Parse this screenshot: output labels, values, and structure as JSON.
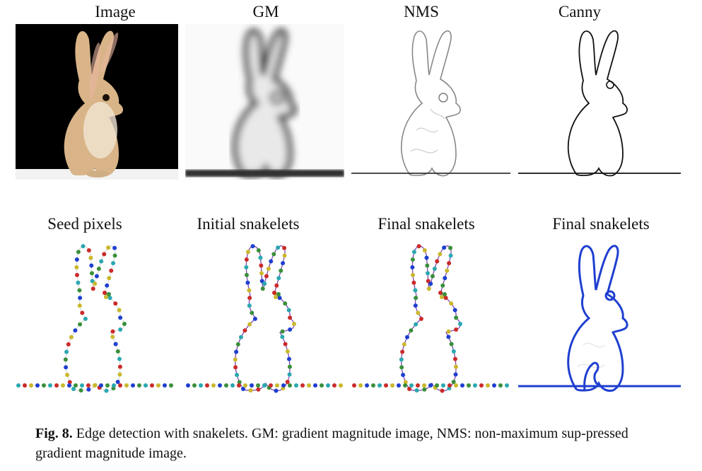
{
  "row1_titles": [
    "Image",
    "GM",
    "NMS",
    "Canny"
  ],
  "row2_titles": [
    "Seed pixels",
    "Initial snakelets",
    "Final snakelets",
    "Final snakelets"
  ],
  "caption": {
    "label": "Fig. 8.",
    "text": " Edge detection with snakelets. GM: gradient magnitude image, NMS: non-maximum sup-pressed gradient magnitude image."
  },
  "colors": {
    "photo_bg": "#000000",
    "fur": "#d9b78a",
    "snakelet_blue": "#1f3fd0",
    "dot_palette": [
      "#1f3fd0",
      "#cc2a2a",
      "#3a8f3a",
      "#c9b82c",
      "#2aa8b0"
    ]
  }
}
